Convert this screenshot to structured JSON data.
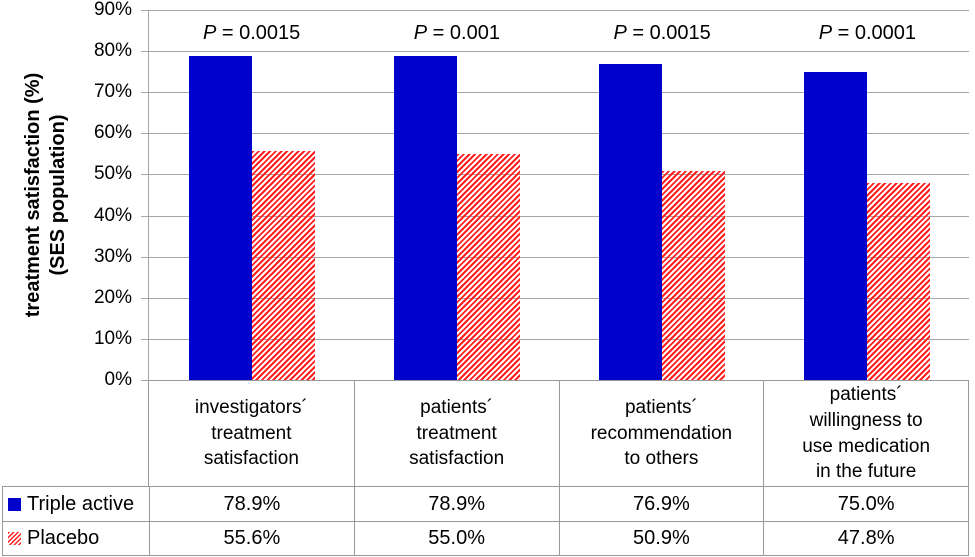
{
  "colors": {
    "triple_active_blue": "#0101CC",
    "placebo_red": "#FF1F1F",
    "gridline_gray": "#A6A6A6",
    "table_border_gray": "#999999",
    "text": "#000000",
    "background": "#FFFFFF"
  },
  "chart_data": {
    "type": "bar",
    "title": "",
    "ylabel": "treatment satisfaction (%)\n(SES population)",
    "ylim": [
      0,
      90
    ],
    "ytick_step": 10,
    "yticks": [
      "90%",
      "80%",
      "70%",
      "60%",
      "50%",
      "40%",
      "30%",
      "20%",
      "10%",
      "0%"
    ],
    "grid": true,
    "legend_position": "table-left-column",
    "categories": [
      "investigators´\ntreatment\nsatisfaction",
      "patients´\ntreatment\nsatisfaction",
      "patients´\nrecommendation\nto others",
      "patients´\nwillingness to\nuse medication\nin the future"
    ],
    "series": [
      {
        "name": "Triple active",
        "values": [
          78.9,
          78.9,
          76.9,
          75.0
        ],
        "table_labels": [
          "78.9%",
          "78.9%",
          "76.9%",
          "75.0%"
        ],
        "color": "#0101CC",
        "pattern": "solid"
      },
      {
        "name": "Placebo",
        "values": [
          55.6,
          55.0,
          50.9,
          47.8
        ],
        "table_labels": [
          "55.6%",
          "55.0%",
          "50.9%",
          "47.8%"
        ],
        "color": "#FF1F1F",
        "pattern": "diagonal-hatch"
      }
    ],
    "annotations": {
      "p_symbol": "P",
      "p_separator": " = ",
      "p_values": [
        "0.0015",
        "0.001",
        "0.0015",
        "0.0001"
      ]
    }
  }
}
